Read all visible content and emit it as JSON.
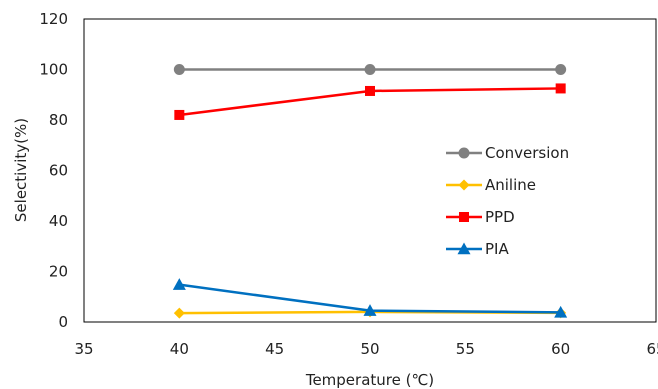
{
  "chart_data": {
    "type": "line",
    "title": "",
    "xlabel": "Temperature (℃)",
    "ylabel": "Selectivity(%)",
    "xlim": [
      35,
      65
    ],
    "ylim": [
      0,
      120
    ],
    "x_ticks": [
      "35",
      "40",
      "45",
      "50",
      "55",
      "60",
      "65"
    ],
    "y_ticks": [
      "0",
      "20",
      "40",
      "60",
      "80",
      "100",
      "120"
    ],
    "grid": false,
    "legend_position": "right",
    "x": [
      40,
      50,
      60
    ],
    "series": [
      {
        "name": "Conversion",
        "values": [
          100,
          100,
          100
        ],
        "color": "#808080",
        "marker": "circle"
      },
      {
        "name": "Aniline",
        "values": [
          3.5,
          4.0,
          3.6
        ],
        "color": "#FFC000",
        "marker": "diamond"
      },
      {
        "name": "PPD",
        "values": [
          82,
          91.5,
          92.5
        ],
        "color": "#FF0000",
        "marker": "square"
      },
      {
        "name": "PIA",
        "values": [
          14.8,
          4.5,
          3.8
        ],
        "color": "#0070C0",
        "marker": "triangle"
      }
    ]
  }
}
